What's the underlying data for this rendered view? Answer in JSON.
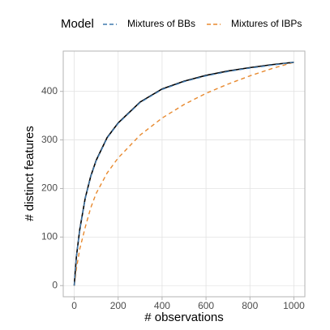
{
  "chart_data": {
    "type": "line",
    "legend_title": "Model",
    "x_label": "# observations",
    "y_label": "# distinct features",
    "x": [
      0,
      10,
      25,
      50,
      75,
      100,
      150,
      200,
      300,
      400,
      500,
      600,
      700,
      800,
      900,
      1000
    ],
    "series": [
      {
        "name": "Mixtures of IBPs",
        "color": "#e8892e",
        "dash": "dashed",
        "values": [
          0,
          35,
          75,
          120,
          160,
          190,
          232,
          263,
          310,
          345,
          373,
          396,
          415,
          432,
          447,
          460
        ]
      },
      {
        "color": "#000000",
        "dash": "solid",
        "values": [
          0,
          60,
          115,
          180,
          225,
          258,
          305,
          335,
          378,
          405,
          421,
          433,
          442,
          449,
          455,
          460
        ]
      },
      {
        "name": "Mixtures of BBs",
        "color": "#3f78ad",
        "dash": "dashed",
        "values": [
          0,
          60,
          114,
          179,
          224,
          257,
          304,
          334,
          377,
          404,
          420,
          432,
          441,
          448,
          454,
          460
        ]
      }
    ],
    "xlim": [
      -50,
      1050
    ],
    "ylim": [
      -23,
      483
    ],
    "xticks": [
      0,
      200,
      400,
      600,
      800,
      1000
    ],
    "yticks": [
      0,
      100,
      200,
      300,
      400
    ],
    "grid": true,
    "legend_position": "top"
  }
}
